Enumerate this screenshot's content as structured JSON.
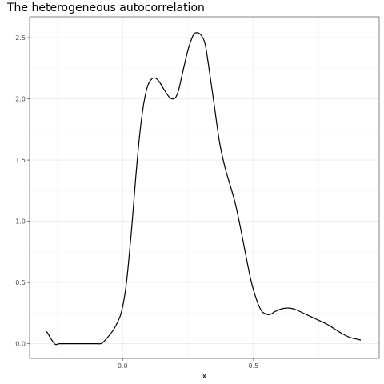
{
  "chart_data": {
    "type": "line",
    "title": "The heterogeneous autocorrelation",
    "xlabel": "x",
    "ylabel": "",
    "xlim": [
      -0.355,
      0.98
    ],
    "ylim": [
      -0.12,
      2.67
    ],
    "x_ticks": [
      0.0,
      0.5
    ],
    "x_tick_labels": [
      "0.0",
      "0.5"
    ],
    "y_ticks": [
      0.0,
      0.5,
      1.0,
      1.5,
      2.0,
      2.5
    ],
    "y_tick_labels": [
      "0.0",
      "0.5",
      "1.0",
      "1.5",
      "2.0",
      "2.5"
    ],
    "grid": true,
    "legend": "none",
    "line_color": "#000000",
    "series": [
      {
        "x": [
          -0.29,
          -0.26,
          -0.24,
          -0.2,
          -0.15,
          -0.1,
          -0.085,
          -0.075,
          -0.05,
          -0.03,
          -0.01,
          0.0,
          0.01,
          0.02,
          0.035,
          0.05,
          0.065,
          0.08,
          0.095,
          0.11,
          0.125,
          0.14,
          0.16,
          0.18,
          0.195,
          0.205,
          0.215,
          0.23,
          0.25,
          0.27,
          0.285,
          0.3,
          0.315,
          0.33,
          0.35,
          0.37,
          0.39,
          0.41,
          0.43,
          0.45,
          0.47,
          0.49,
          0.51,
          0.53,
          0.55,
          0.565,
          0.58,
          0.6,
          0.62,
          0.64,
          0.66,
          0.69,
          0.72,
          0.75,
          0.78,
          0.81,
          0.84,
          0.87,
          0.91
        ],
        "y": [
          0.1,
          0.0,
          0.0,
          0.0,
          0.0,
          0.0,
          0.0,
          0.01,
          0.07,
          0.13,
          0.22,
          0.3,
          0.42,
          0.6,
          0.95,
          1.35,
          1.7,
          1.95,
          2.1,
          2.16,
          2.17,
          2.14,
          2.07,
          2.01,
          2.0,
          2.02,
          2.08,
          2.22,
          2.4,
          2.52,
          2.54,
          2.52,
          2.45,
          2.25,
          1.95,
          1.65,
          1.45,
          1.3,
          1.15,
          0.95,
          0.73,
          0.52,
          0.37,
          0.27,
          0.24,
          0.24,
          0.26,
          0.28,
          0.29,
          0.29,
          0.28,
          0.25,
          0.22,
          0.19,
          0.16,
          0.12,
          0.08,
          0.05,
          0.03
        ]
      }
    ]
  }
}
